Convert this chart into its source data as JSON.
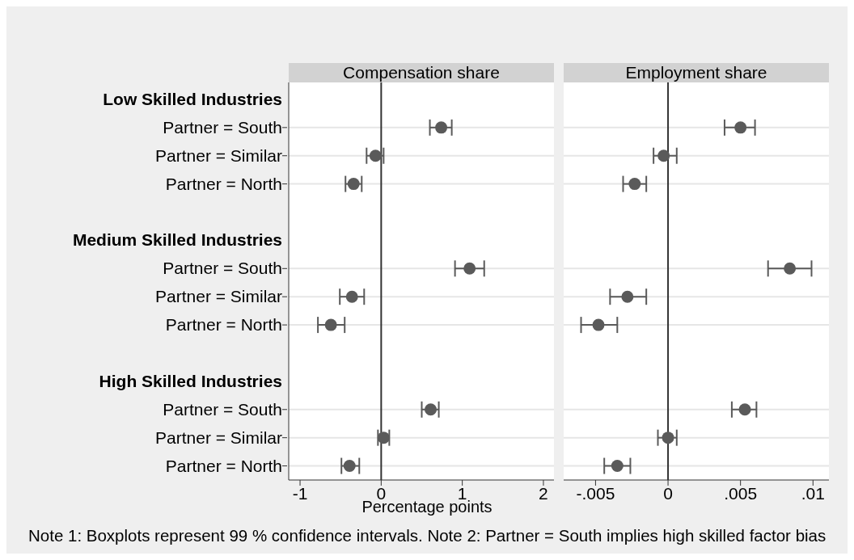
{
  "chart_data": [
    {
      "type": "scatter",
      "title": "Compensation share",
      "xlabel": "Percentage points",
      "annotations": [
        "Note 1: Boxplots represent 99 % confidence intervals. Note 2: Partner = South implies high skilled factor bias"
      ],
      "orientation": "horizontal",
      "marker": "circle",
      "color": "#5a5a5a",
      "grid": "y",
      "categories": [
        "Low Skilled Industries",
        "Partner = South",
        "Partner = Similar",
        "Partner = North",
        null,
        "Medium Skilled Industries",
        "Partner = South",
        "Partner = Similar",
        "Partner = North",
        null,
        "High Skilled Industries",
        "Partner = South",
        "Partner = Similar",
        "Partner = North"
      ],
      "values": [
        null,
        0.74,
        -0.07,
        -0.34,
        null,
        null,
        1.09,
        -0.36,
        -0.62,
        null,
        null,
        0.61,
        0.03,
        -0.39
      ],
      "errors": [
        null,
        [
          0.6,
          0.87
        ],
        [
          -0.18,
          0.03
        ],
        [
          -0.44,
          -0.24
        ],
        null,
        null,
        [
          0.91,
          1.27
        ],
        [
          -0.51,
          -0.21
        ],
        [
          -0.78,
          -0.45
        ],
        null,
        null,
        [
          0.5,
          0.71
        ],
        [
          -0.04,
          0.1
        ],
        [
          -0.49,
          -0.27
        ]
      ],
      "xlim": [
        -1.14,
        2.13
      ],
      "xticks": [
        -1,
        0,
        1,
        2
      ],
      "ref_lines": [
        {
          "axis": "x",
          "value": 0
        }
      ]
    },
    {
      "type": "scatter",
      "title": "Employment share",
      "orientation": "horizontal",
      "marker": "circle",
      "color": "#5a5a5a",
      "grid": "y",
      "tick_labels": "x",
      "categories": [
        null,
        null,
        null,
        null,
        null,
        null,
        null,
        null,
        null,
        null,
        null,
        null,
        null,
        null
      ],
      "values": [
        null,
        0.005,
        -0.0003,
        -0.0023,
        null,
        null,
        0.0084,
        -0.0028,
        -0.0048,
        null,
        null,
        0.0053,
        0.0,
        -0.0035
      ],
      "errors": [
        null,
        [
          0.0039,
          0.006
        ],
        [
          -0.001,
          0.0006
        ],
        [
          -0.0031,
          -0.0015
        ],
        null,
        null,
        [
          0.0069,
          0.0099
        ],
        [
          -0.004,
          -0.0015
        ],
        [
          -0.006,
          -0.0035
        ],
        null,
        null,
        [
          0.0044,
          0.0061
        ],
        [
          -0.0007,
          0.0006
        ],
        [
          -0.0044,
          -0.0026
        ]
      ],
      "xlim": [
        -0.0072,
        0.0111
      ],
      "xticks": [
        {
          "value": -0.005,
          "label": "-.005"
        },
        0,
        {
          "value": 0.005,
          "label": ".005"
        },
        {
          "value": 0.01,
          "label": ".01"
        }
      ],
      "ref_lines": [
        {
          "axis": "x",
          "value": 0
        }
      ]
    }
  ]
}
